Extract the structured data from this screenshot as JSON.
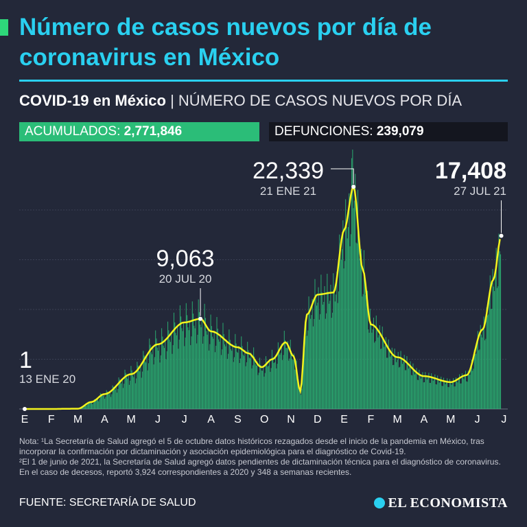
{
  "title": "Número de casos nuevos por día de coronavirus en México",
  "subtitle_bold": "COVID-19 en México",
  "subtitle_sep": "|",
  "subtitle_light": "NÚMERO DE CASOS NUEVOS POR DÍA",
  "stats": {
    "acumulados_label": "ACUMULADOS:",
    "acumulados_value": "2,771,846",
    "defunciones_label": "DEFUNCIONES:",
    "defunciones_value": "239,079"
  },
  "colors": {
    "accent": "#2ad0f0",
    "bar": "#2bbd78",
    "line": "#f4f41c",
    "background": "#232839"
  },
  "chart_data": {
    "type": "bar",
    "x_tick_labels": [
      "E",
      "F",
      "M",
      "A",
      "M",
      "J",
      "J",
      "A",
      "S",
      "O",
      "N",
      "D",
      "E",
      "F",
      "M",
      "A",
      "M",
      "J",
      "J"
    ],
    "ylim": [
      0,
      24000
    ],
    "grid": true,
    "smoothed_line_color": "#f4f41c",
    "trend_points": [
      {
        "month_index": 0,
        "value": 1
      },
      {
        "month_index": 1,
        "value": 0
      },
      {
        "month_index": 2,
        "value": 30
      },
      {
        "month_index": 2.5,
        "value": 700
      },
      {
        "month_index": 3,
        "value": 1500
      },
      {
        "month_index": 4,
        "value": 3500
      },
      {
        "month_index": 5,
        "value": 6500
      },
      {
        "month_index": 6,
        "value": 8700
      },
      {
        "month_index": 6.6,
        "value": 9063
      },
      {
        "month_index": 7,
        "value": 7800
      },
      {
        "month_index": 8,
        "value": 6200
      },
      {
        "month_index": 8.4,
        "value": 5600
      },
      {
        "month_index": 8.9,
        "value": 4200
      },
      {
        "month_index": 9.3,
        "value": 5000
      },
      {
        "month_index": 9.8,
        "value": 6700
      },
      {
        "month_index": 10.1,
        "value": 5300
      },
      {
        "month_index": 10.35,
        "value": 1800
      },
      {
        "month_index": 10.6,
        "value": 9500
      },
      {
        "month_index": 11,
        "value": 11500
      },
      {
        "month_index": 11.6,
        "value": 11700
      },
      {
        "month_index": 12.0,
        "value": 18000
      },
      {
        "month_index": 12.35,
        "value": 22339
      },
      {
        "month_index": 12.7,
        "value": 14000
      },
      {
        "month_index": 13,
        "value": 8500
      },
      {
        "month_index": 14,
        "value": 5200
      },
      {
        "month_index": 15,
        "value": 3300
      },
      {
        "month_index": 16,
        "value": 2700
      },
      {
        "month_index": 16.6,
        "value": 3400
      },
      {
        "month_index": 17.2,
        "value": 8000
      },
      {
        "month_index": 17.6,
        "value": 13000
      },
      {
        "month_index": 17.9,
        "value": 17408
      }
    ],
    "annotations": [
      {
        "value_label": "1",
        "date_label": "13 ENE 20",
        "month_index": 0,
        "value": 1
      },
      {
        "value_label": "9,063",
        "date_label": "20 JUL 20",
        "month_index": 6.6,
        "value": 9063
      },
      {
        "value_label": "22,339",
        "date_label": "21 ENE 21",
        "month_index": 12.35,
        "value": 22339
      },
      {
        "value_label": "17,408",
        "date_label": "27 JUL 21",
        "month_index": 17.9,
        "value": 17408
      }
    ]
  },
  "notes": {
    "note1": "Nota: ¹La Secretaría de Salud agregó el 5 de octubre datos históricos rezagados desde el inicio de la pandemia en México, tras incorporar la confirmación por dictaminación y asociación epidemiológica para el diagnóstico de Covid-19.",
    "note2": "²El 1 de junio de 2021, la Secretaría de Salud agregó datos pendientes de dictaminación técnica para el diagnóstico de coronavirus. En el caso de decesos, reportó 3,924 correspondientes a 2020 y 348 a semanas recientes."
  },
  "source": "FUENTE: SECRETARÍA DE SALUD",
  "logo": "EL ECONOMISTA"
}
